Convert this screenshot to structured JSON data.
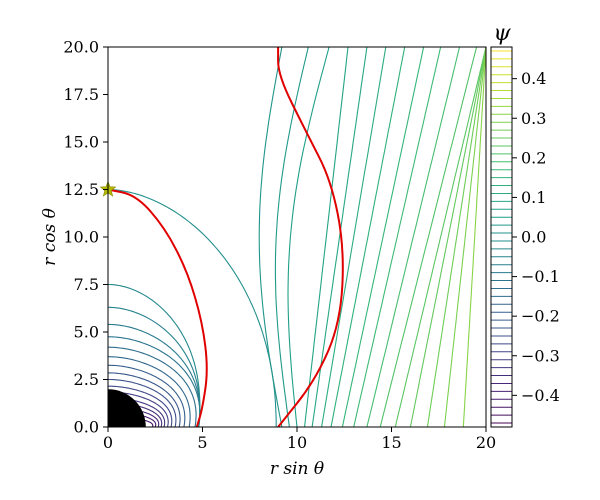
{
  "chart_data": {
    "type": "contour",
    "xlabel": "r sin θ",
    "ylabel": "r cos θ",
    "xlim": [
      0,
      20
    ],
    "ylim": [
      0,
      20
    ],
    "x_ticks": [
      "0",
      "5",
      "10",
      "15",
      "20"
    ],
    "y_ticks": [
      "0.0",
      "2.5",
      "5.0",
      "7.5",
      "10.0",
      "12.5",
      "15.0",
      "17.5",
      "20.0"
    ],
    "x_tick_values": [
      0,
      5,
      10,
      15,
      20
    ],
    "y_tick_values": [
      0,
      2.5,
      5,
      7.5,
      10,
      12.5,
      15,
      17.5,
      20
    ],
    "colorbar": {
      "title": "ψ",
      "range": [
        -0.48,
        0.48
      ],
      "tick_values": [
        -0.4,
        -0.3,
        -0.2,
        -0.1,
        0.0,
        0.1,
        0.2,
        0.3,
        0.4
      ],
      "tick_labels": [
        "−0.4",
        "−0.3",
        "−0.2",
        "−0.1",
        "0.0",
        "0.1",
        "0.2",
        "0.3",
        "0.4"
      ],
      "colormap": "viridis"
    },
    "closed_loop_contour_apexes_y": [
      0.55,
      0.8,
      1.05,
      1.3,
      1.55,
      1.85,
      2.15,
      2.5,
      2.85,
      3.25,
      3.7,
      4.2,
      4.75,
      5.4,
      6.3,
      7.5,
      12.5
    ],
    "open_field_lines": [
      {
        "x0": 9.2,
        "x_top": 9.2
      },
      {
        "x0": 9.6,
        "x_top": 10.6
      },
      {
        "x0": 10.0,
        "x_top": 11.7
      },
      {
        "x0": 10.4,
        "x_top": 12.7
      },
      {
        "x0": 10.8,
        "x_top": 13.7
      },
      {
        "x0": 11.3,
        "x_top": 14.7
      },
      {
        "x0": 11.8,
        "x_top": 15.7
      },
      {
        "x0": 12.4,
        "x_top": 16.7
      },
      {
        "x0": 13.0,
        "x_top": 17.6
      },
      {
        "x0": 13.7,
        "x_top": 18.6
      },
      {
        "x0": 14.4,
        "x_top": 19.5
      },
      {
        "x0": 15.2,
        "x_top": 20.0
      },
      {
        "x0": 16.0,
        "x_top": 20.0
      },
      {
        "x0": 16.9,
        "x_top": 20.0
      },
      {
        "x0": 17.8,
        "x_top": 20.0
      },
      {
        "x0": 18.8,
        "x_top": 20.0
      }
    ],
    "red_curves": [
      {
        "points": [
          [
            0,
            12.5
          ],
          [
            1.5,
            12.2
          ],
          [
            3.0,
            10.5
          ],
          [
            4.2,
            8.2
          ],
          [
            5.0,
            5.5
          ],
          [
            5.3,
            3.0
          ],
          [
            5.0,
            1.0
          ],
          [
            4.7,
            0
          ]
        ]
      },
      {
        "points": [
          [
            9.0,
            0
          ],
          [
            11.0,
            2.5
          ],
          [
            12.3,
            5.5
          ],
          [
            12.5,
            9.5
          ],
          [
            11.8,
            13.0
          ],
          [
            10.5,
            15.5
          ],
          [
            9.0,
            18.5
          ],
          [
            9.0,
            20.0
          ]
        ]
      }
    ],
    "star": {
      "x": 0,
      "y": 12.5,
      "color": "#b5b800"
    },
    "central_disk": {
      "radius": 2.0,
      "color": "#000000"
    }
  }
}
